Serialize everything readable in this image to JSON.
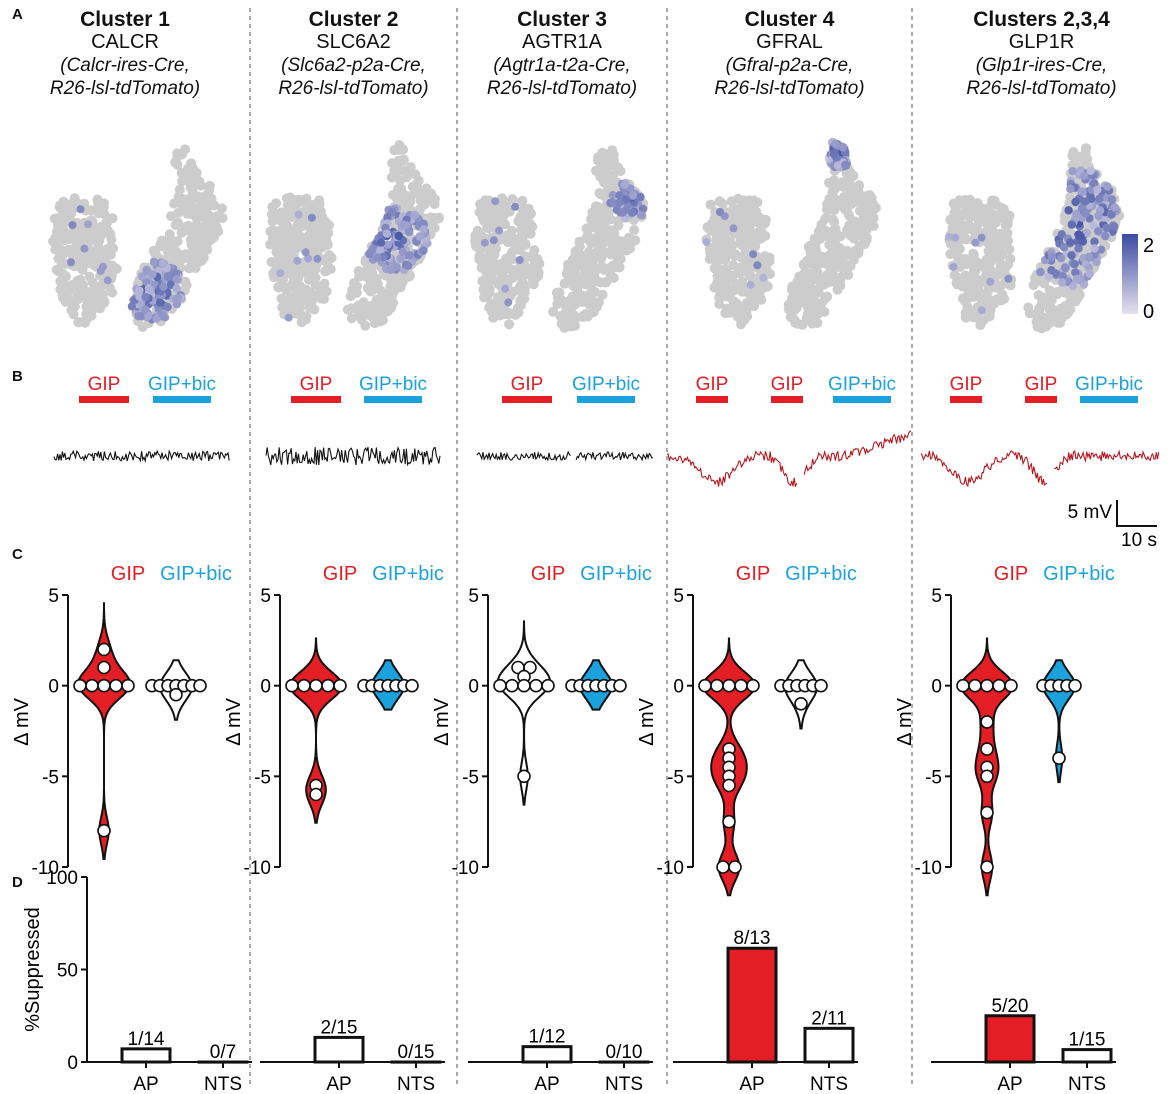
{
  "panel_letters": [
    "A",
    "B",
    "C",
    "D"
  ],
  "columns": [
    {
      "cluster": "Cluster 1",
      "gene": "CALCR",
      "genotype": [
        "(Calcr-ires-Cre,",
        "R26-lsl-tdTomato)"
      ]
    },
    {
      "cluster": "Cluster 2",
      "gene": "SLC6A2",
      "genotype": [
        "(Slc6a2-p2a-Cre,",
        "R26-lsl-tdTomato)"
      ]
    },
    {
      "cluster": "Cluster 3",
      "gene": "AGTR1A",
      "genotype": [
        "(Agtr1a-t2a-Cre,",
        "R26-lsl-tdTomato)"
      ]
    },
    {
      "cluster": "Cluster 4",
      "gene": "GFRAL",
      "genotype": [
        "(Gfral-p2a-Cre,",
        "R26-lsl-tdTomato)"
      ]
    },
    {
      "cluster": "Clusters 2,3,4",
      "gene": "GLP1R",
      "genotype": [
        "(Glp1r-ires-Cre,",
        "R26-lsl-tdTomato)"
      ]
    }
  ],
  "colorbar": {
    "max_label": "2",
    "min_label": "0",
    "high_color": "#3a4ba0",
    "low_color": "#e6e0ee"
  },
  "colors": {
    "gip": "#e31e24",
    "bic": "#1ba1dc",
    "trace_black": "#111111",
    "trace_red": "#b5181f",
    "umap_grey": "#cccccc"
  },
  "traces": {
    "labels": {
      "gip": "GIP",
      "bic": "GIP+bic"
    },
    "scale_bar": {
      "mv": "5 mV",
      "s": "10 s"
    },
    "columns": [
      {
        "responsive": false,
        "n_gip": 1
      },
      {
        "responsive": false,
        "n_gip": 1
      },
      {
        "responsive": false,
        "n_gip": 1
      },
      {
        "responsive": true,
        "n_gip": 2
      },
      {
        "responsive": true,
        "n_gip": 2
      }
    ]
  },
  "chart_data": [
    {
      "type": "violin",
      "panel": "C",
      "ylabel": "Δ mV",
      "ylim": [
        -10,
        5
      ],
      "yticks": [
        5,
        0,
        -5,
        -10
      ],
      "legend": [
        "GIP",
        "GIP+bic"
      ],
      "columns": [
        {
          "gip": [
            2,
            1,
            0,
            0,
            0,
            0,
            0,
            -8
          ],
          "bic": [
            0,
            0,
            0,
            0,
            0,
            0,
            0,
            -0.5
          ],
          "bic_filled": false
        },
        {
          "gip": [
            0,
            0,
            0,
            0,
            0,
            -5.5,
            -6
          ],
          "bic": [
            0,
            0,
            0,
            0,
            0,
            0,
            0
          ],
          "bic_filled": true
        },
        {
          "gip": [
            1,
            1,
            0.5,
            0,
            0,
            0,
            0,
            0,
            -5
          ],
          "bic": [
            0,
            0,
            0,
            0,
            0,
            0,
            0
          ],
          "bic_filled": true
        },
        {
          "gip": [
            0,
            0,
            0,
            0,
            0,
            -3.5,
            -4,
            -4.5,
            -5,
            -5.5,
            -7.5,
            -10,
            -10
          ],
          "bic": [
            0,
            0,
            0,
            0,
            0,
            0,
            -1
          ],
          "bic_filled": false
        },
        {
          "gip": [
            0,
            0,
            0,
            0,
            0,
            -2,
            -3.5,
            -4.5,
            -5,
            -7,
            -10
          ],
          "bic": [
            0,
            0,
            0,
            0,
            0,
            -4
          ],
          "bic_filled": true
        }
      ]
    },
    {
      "type": "bar",
      "panel": "D",
      "ylabel": "%Suppressed",
      "ylim": [
        0,
        100
      ],
      "yticks": [
        100,
        50,
        0
      ],
      "categories": [
        "AP",
        "NTS"
      ],
      "columns": [
        {
          "values": [
            7.1,
            0
          ],
          "labels": [
            "1/14",
            "0/7"
          ],
          "filled": false
        },
        {
          "values": [
            13.3,
            0
          ],
          "labels": [
            "2/15",
            "0/15"
          ],
          "filled": false
        },
        {
          "values": [
            8.3,
            0
          ],
          "labels": [
            "1/12",
            "0/10"
          ],
          "filled": false
        },
        {
          "values": [
            61.5,
            18.2
          ],
          "labels": [
            "8/13",
            "2/11"
          ],
          "filled": true
        },
        {
          "values": [
            25,
            6.7
          ],
          "labels": [
            "5/20",
            "1/15"
          ],
          "filled": true
        }
      ]
    }
  ]
}
